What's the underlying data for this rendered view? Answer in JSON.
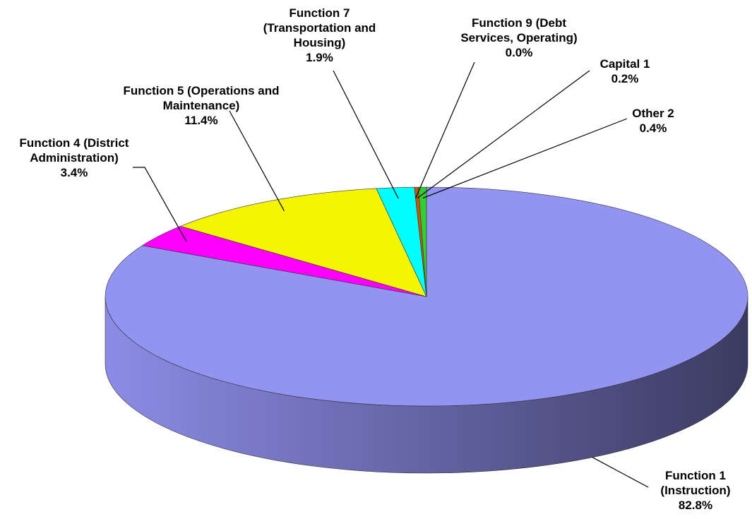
{
  "chart_data": {
    "type": "pie3d",
    "categories": [
      "Function 1 (Instruction)",
      "Function 4 (District Administration)",
      "Function 5 (Operations and Maintenance)",
      "Function 7 (Transportation and Housing)",
      "Function 9 (Debt Services, Operating)",
      "Capital 1",
      "Other 2"
    ],
    "values": [
      82.8,
      3.4,
      11.4,
      1.9,
      0.0,
      0.2,
      0.4
    ],
    "value_labels": [
      "82.8%",
      "3.4%",
      "11.4%",
      "1.9%",
      "0.0%",
      "0.2%",
      "0.4%"
    ],
    "colors": [
      "#9393f2",
      "#ff00ff",
      "#f5f500",
      "#00ffff",
      "#993300",
      "#cc5500",
      "#33cc33"
    ]
  }
}
